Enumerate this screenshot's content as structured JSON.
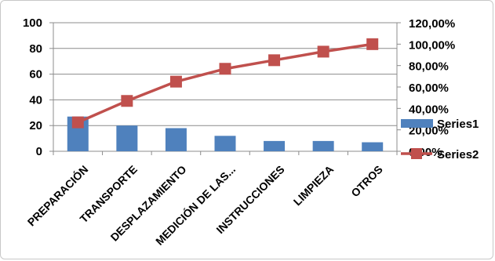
{
  "chart_data": {
    "type": "bar",
    "combo": "bar+line",
    "categories": [
      "PREPARACIÓN",
      "TRANSPORTE",
      "DESPLAZAMIENTO",
      "MEDICIÓN DE LAS...",
      "INSTRUCCIONES",
      "LIMPIEZA",
      "OTROS"
    ],
    "series": [
      {
        "name": "Series1",
        "type": "bar",
        "axis": "left",
        "values": [
          27,
          20,
          18,
          12,
          8,
          8,
          7
        ]
      },
      {
        "name": "Series2",
        "type": "line",
        "axis": "right",
        "values": [
          0.27,
          0.47,
          0.65,
          0.77,
          0.85,
          0.93,
          1.0
        ]
      }
    ],
    "y_left": {
      "ylim": [
        0,
        100
      ],
      "ticks": [
        0,
        20,
        40,
        60,
        80,
        100
      ],
      "tick_labels": [
        "0",
        "20",
        "40",
        "60",
        "80",
        "100"
      ]
    },
    "y_right": {
      "ylim": [
        0,
        1.2
      ],
      "ticks": [
        0,
        0.2,
        0.4,
        0.6,
        0.8,
        1.0,
        1.2
      ],
      "tick_labels": [
        "0,00%",
        "20,00%",
        "40,00%",
        "60,00%",
        "80,00%",
        "100,00%",
        "120,00%"
      ]
    },
    "title": "",
    "xlabel": "",
    "ylabel": "",
    "grid": "horizontal",
    "legend": "right",
    "colors": {
      "bar": "#4f81bd",
      "line": "#c0504d",
      "marker": "#c0504d",
      "grid": "#8c8c8c",
      "axis": "#8c8c8c"
    }
  }
}
